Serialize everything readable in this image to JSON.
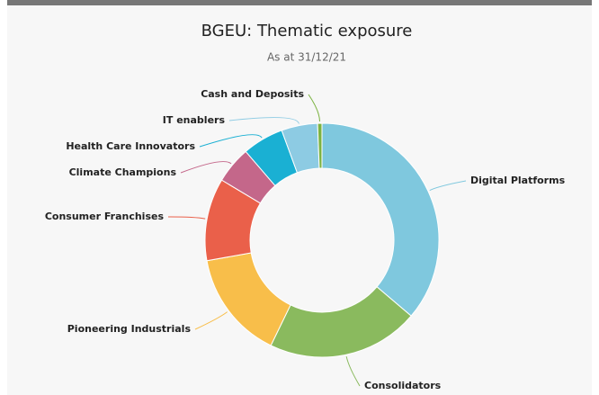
{
  "chart_data": {
    "type": "donut",
    "title": "BGEU: Thematic exposure",
    "subtitle": "As at 31/12/21",
    "categories": [
      "Digital Platforms",
      "Consolidators",
      "Pioneering Industrials",
      "Consumer Franchises",
      "Climate Champions",
      "Health Care Innovators",
      "IT enablers",
      "Cash and Deposits"
    ],
    "values": [
      36.2,
      21,
      15,
      11.4,
      5.1,
      5.7,
      5,
      0.6
    ],
    "colors": [
      "#7fc8de",
      "#8aba5e",
      "#f8be4a",
      "#ea604a",
      "#c4678a",
      "#1ab0d3",
      "#8dcbe3",
      "#7cb342"
    ]
  }
}
